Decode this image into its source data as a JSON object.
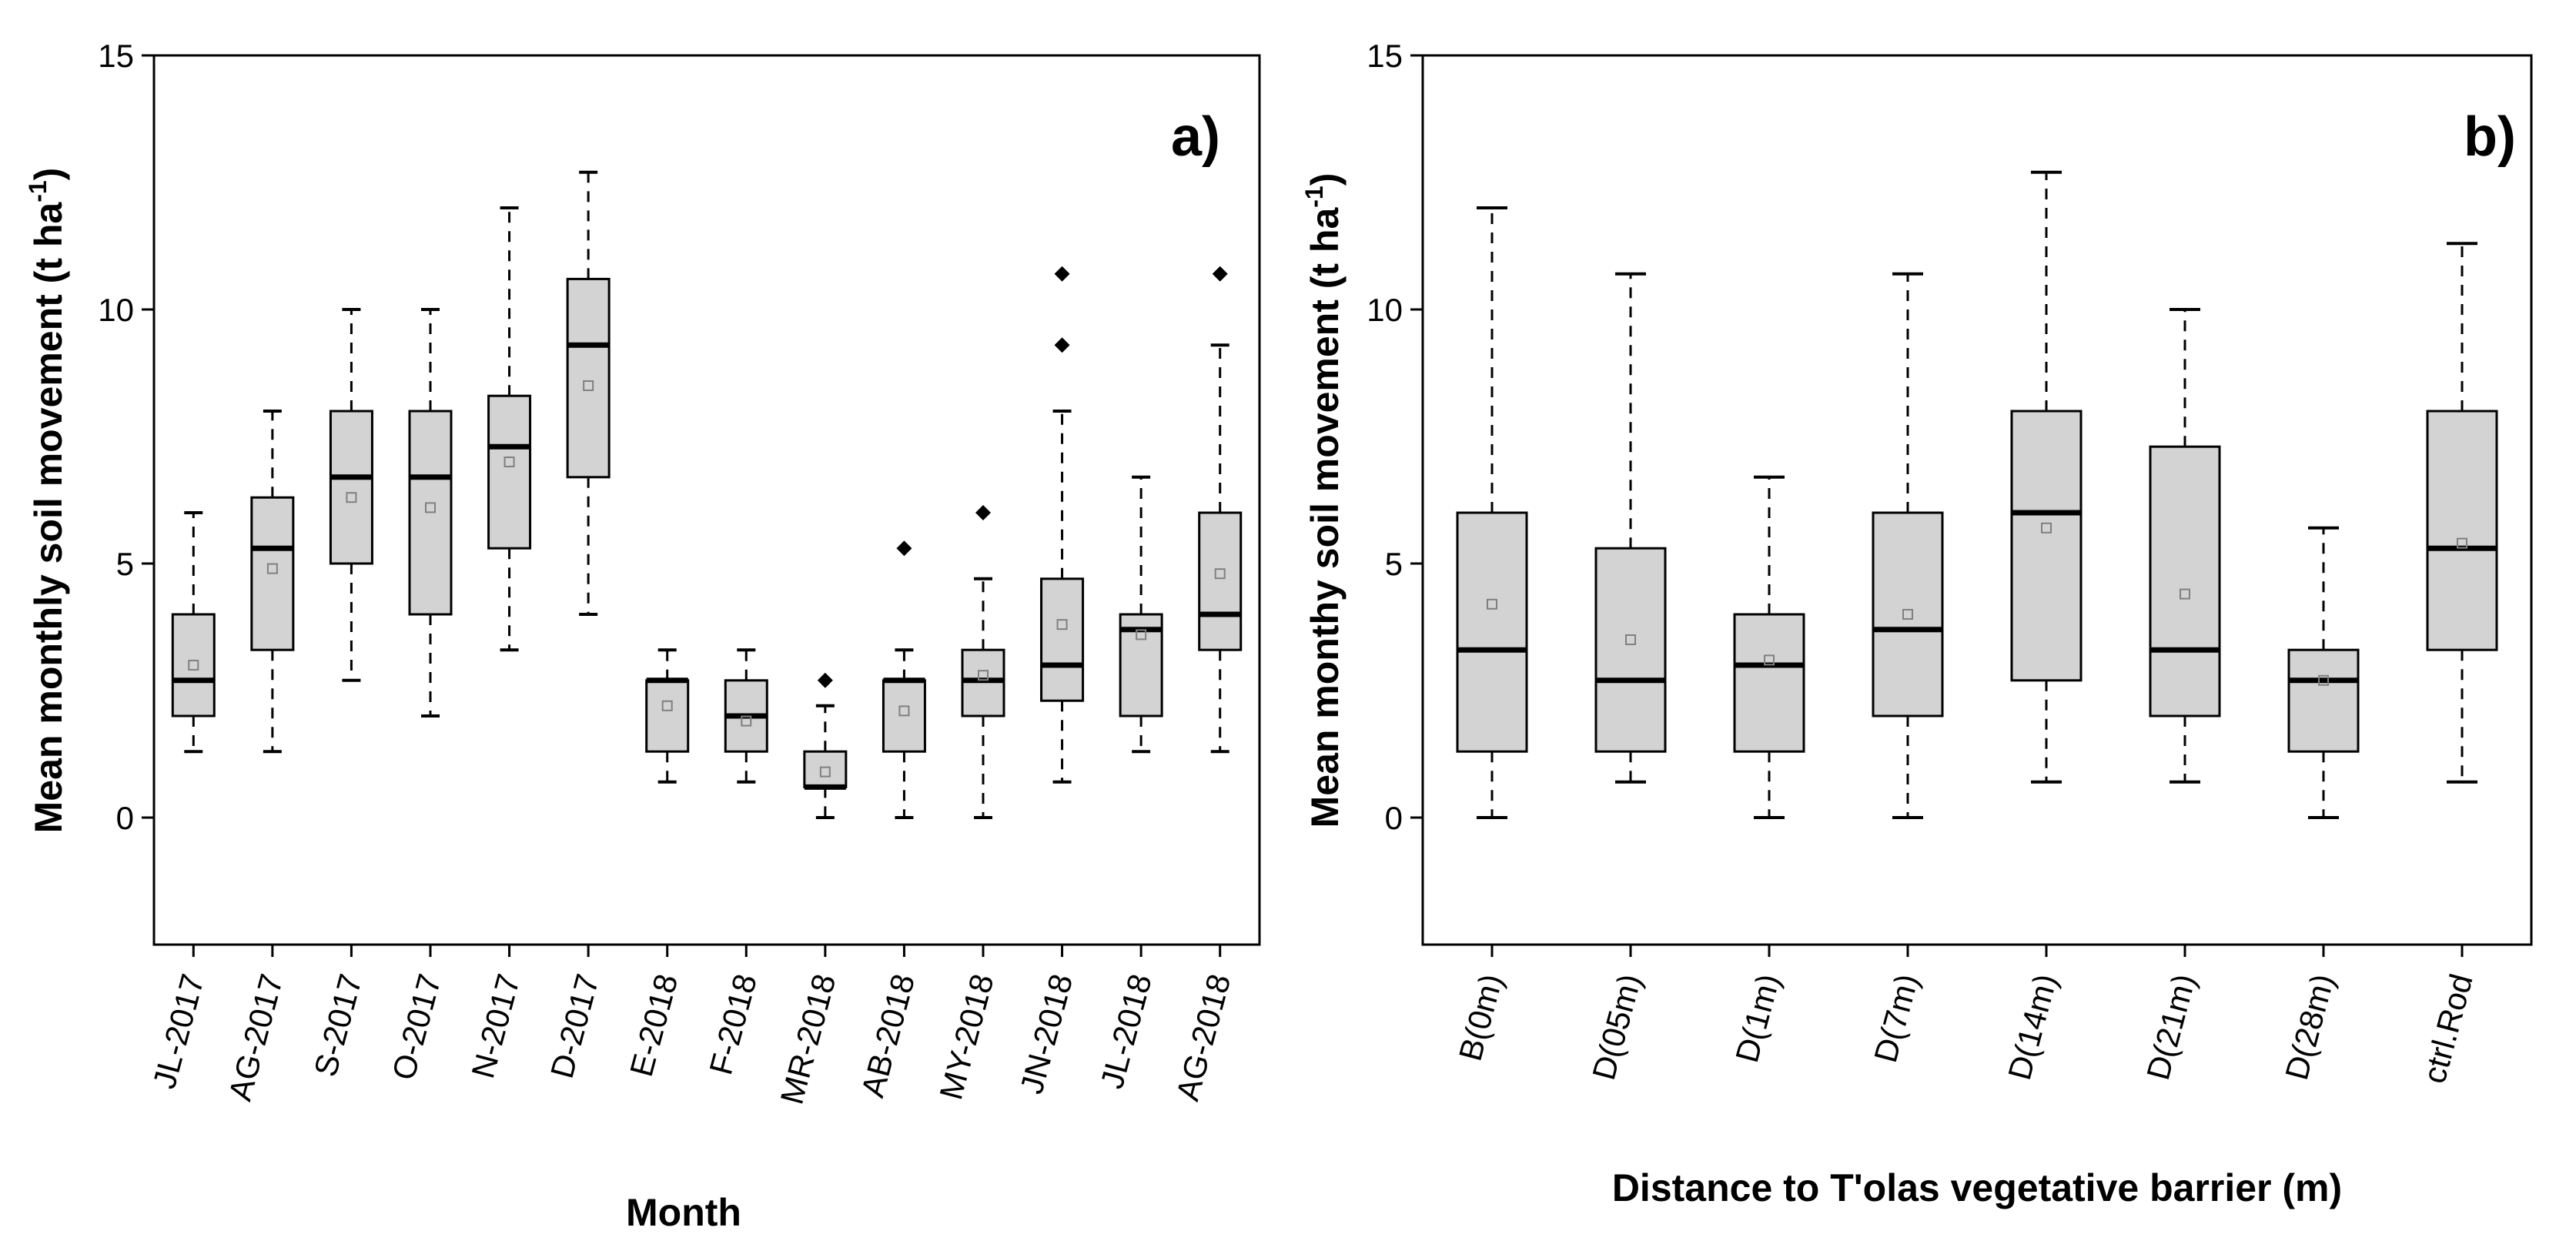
{
  "chart_data": [
    {
      "type": "box",
      "panel_label": "a)",
      "xlabel": "Month",
      "ylabel": "Mean monthly soil movement",
      "ylabel_unit": "(t ha",
      "ylabel_exponent": "-1",
      "ylabel_close": ")",
      "ylim": [
        -2.5,
        15
      ],
      "yticks": [
        0,
        5,
        10,
        15
      ],
      "ytick_labels": [
        "0",
        "5",
        "10",
        "15"
      ],
      "categories": [
        "JL-2017",
        "AG-2017",
        "S-2017",
        "O-2017",
        "N-2017",
        "D-2017",
        "E-2018",
        "F-2018",
        "MR-2018",
        "AB-2018",
        "MY-2018",
        "JN-2018",
        "JL-2018",
        "AG-2018"
      ],
      "boxes": [
        {
          "whisker_low": 1.3,
          "q1": 2.0,
          "median": 2.7,
          "q3": 4.0,
          "whisker_high": 6.0,
          "mean": 3.0,
          "outliers": []
        },
        {
          "whisker_low": 1.3,
          "q1": 3.3,
          "median": 5.3,
          "q3": 6.3,
          "whisker_high": 8.0,
          "mean": 4.9,
          "outliers": []
        },
        {
          "whisker_low": 2.7,
          "q1": 5.0,
          "median": 6.7,
          "q3": 8.0,
          "whisker_high": 10.0,
          "mean": 6.3,
          "outliers": []
        },
        {
          "whisker_low": 2.0,
          "q1": 4.0,
          "median": 6.7,
          "q3": 8.0,
          "whisker_high": 10.0,
          "mean": 6.1,
          "outliers": []
        },
        {
          "whisker_low": 3.3,
          "q1": 5.3,
          "median": 7.3,
          "q3": 8.3,
          "whisker_high": 12.0,
          "mean": 7.0,
          "outliers": []
        },
        {
          "whisker_low": 4.0,
          "q1": 6.7,
          "median": 9.3,
          "q3": 10.6,
          "whisker_high": 12.7,
          "mean": 8.5,
          "outliers": []
        },
        {
          "whisker_low": 0.7,
          "q1": 1.3,
          "median": 2.7,
          "q3": 2.7,
          "whisker_high": 3.3,
          "mean": 2.2,
          "outliers": []
        },
        {
          "whisker_low": 0.7,
          "q1": 1.3,
          "median": 2.0,
          "q3": 2.7,
          "whisker_high": 3.3,
          "mean": 1.9,
          "outliers": []
        },
        {
          "whisker_low": 0.0,
          "q1": 0.6,
          "median": 0.6,
          "q3": 1.3,
          "whisker_high": 2.2,
          "mean": 0.9,
          "outliers": [
            2.7
          ]
        },
        {
          "whisker_low": 0.0,
          "q1": 1.3,
          "median": 2.7,
          "q3": 2.7,
          "whisker_high": 3.3,
          "mean": 2.1,
          "outliers": [
            5.3
          ]
        },
        {
          "whisker_low": 0.0,
          "q1": 2.0,
          "median": 2.7,
          "q3": 3.3,
          "whisker_high": 4.7,
          "mean": 2.8,
          "outliers": [
            6.0
          ]
        },
        {
          "whisker_low": 0.7,
          "q1": 2.3,
          "median": 3.0,
          "q3": 4.7,
          "whisker_high": 8.0,
          "mean": 3.8,
          "outliers": [
            9.3,
            10.7
          ]
        },
        {
          "whisker_low": 1.3,
          "q1": 2.0,
          "median": 3.7,
          "q3": 4.0,
          "whisker_high": 6.7,
          "mean": 3.6,
          "outliers": []
        },
        {
          "whisker_low": 1.3,
          "q1": 3.3,
          "median": 4.0,
          "q3": 6.0,
          "whisker_high": 9.3,
          "mean": 4.8,
          "outliers": [
            10.7
          ]
        }
      ]
    },
    {
      "type": "box",
      "panel_label": "b)",
      "xlabel": "Distance to T'olas vegetative barrier (m)",
      "ylabel": "Mean monthy soil movement",
      "ylabel_unit": "(t ha",
      "ylabel_exponent": "-1",
      "ylabel_close": ")",
      "ylim": [
        -2.5,
        15
      ],
      "yticks": [
        0,
        5,
        10,
        15
      ],
      "ytick_labels": [
        "0",
        "5",
        "10",
        "15"
      ],
      "categories": [
        "B(0m)",
        "D(05m)",
        "D(1m)",
        "D(7m)",
        "D(14m)",
        "D(21m)",
        "D(28m)",
        "ctrl.Rod"
      ],
      "boxes": [
        {
          "whisker_low": 0.0,
          "q1": 1.3,
          "median": 3.3,
          "q3": 6.0,
          "whisker_high": 12.0,
          "mean": 4.2,
          "outliers": []
        },
        {
          "whisker_low": 0.7,
          "q1": 1.3,
          "median": 2.7,
          "q3": 5.3,
          "whisker_high": 10.7,
          "mean": 3.5,
          "outliers": []
        },
        {
          "whisker_low": 0.0,
          "q1": 1.3,
          "median": 3.0,
          "q3": 4.0,
          "whisker_high": 6.7,
          "mean": 3.1,
          "outliers": []
        },
        {
          "whisker_low": 0.0,
          "q1": 2.0,
          "median": 3.7,
          "q3": 6.0,
          "whisker_high": 10.7,
          "mean": 4.0,
          "outliers": []
        },
        {
          "whisker_low": 0.7,
          "q1": 2.7,
          "median": 6.0,
          "q3": 8.0,
          "whisker_high": 12.7,
          "mean": 5.7,
          "outliers": []
        },
        {
          "whisker_low": 0.7,
          "q1": 2.0,
          "median": 3.3,
          "q3": 7.3,
          "whisker_high": 10.0,
          "mean": 4.4,
          "outliers": []
        },
        {
          "whisker_low": 0.0,
          "q1": 1.3,
          "median": 2.7,
          "q3": 3.3,
          "whisker_high": 5.7,
          "mean": 2.7,
          "outliers": []
        },
        {
          "whisker_low": 0.7,
          "q1": 3.3,
          "median": 5.3,
          "q3": 8.0,
          "whisker_high": 11.3,
          "mean": 5.4,
          "outliers": []
        }
      ]
    }
  ],
  "colors": {
    "box_fill": "#d3d3d3",
    "line": "#000000",
    "mean_marker": "#808080"
  }
}
